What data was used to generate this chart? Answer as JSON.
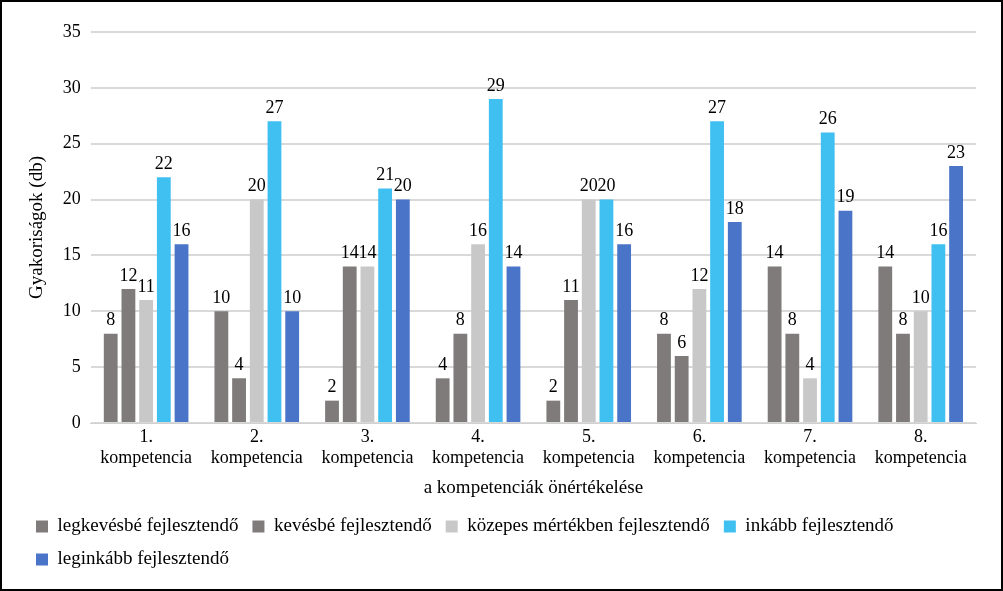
{
  "chart_data": {
    "type": "bar",
    "xlabel": "a kompetenciák önértékelése",
    "ylabel": "Gyakoriságok (db)",
    "categories": [
      "1. kompetencia",
      "2. kompetencia",
      "3. kompetencia",
      "4. kompetencia",
      "5. kompetencia",
      "6. kompetencia",
      "7. kompetencia",
      "8. kompetencia"
    ],
    "series": [
      {
        "name": "legkevésbé fejlesztendő",
        "color": "#7f7b7b",
        "values": [
          8,
          10,
          2,
          4,
          2,
          8,
          14,
          14
        ]
      },
      {
        "name": "kevésbé fejlesztendő",
        "color": "#7f7b7b",
        "values": [
          12,
          4,
          14,
          8,
          11,
          6,
          8,
          8
        ]
      },
      {
        "name": "közepes mértékben fejlesztendő",
        "color": "#c8c8c8",
        "values": [
          11,
          20,
          14,
          16,
          20,
          12,
          4,
          10
        ]
      },
      {
        "name": "inkább fejlesztendő",
        "color": "#3fc0f0",
        "values": [
          22,
          27,
          21,
          29,
          20,
          27,
          26,
          16
        ]
      },
      {
        "name": "leginkább fejlesztendő",
        "color": "#4a74c8",
        "values": [
          16,
          10,
          20,
          14,
          16,
          18,
          19,
          23
        ]
      }
    ],
    "ylim": [
      0,
      35
    ],
    "yticks": [
      0,
      5,
      10,
      15,
      20,
      25,
      30,
      35
    ],
    "grid": "y",
    "legend": "bottom",
    "data_labels": true
  }
}
